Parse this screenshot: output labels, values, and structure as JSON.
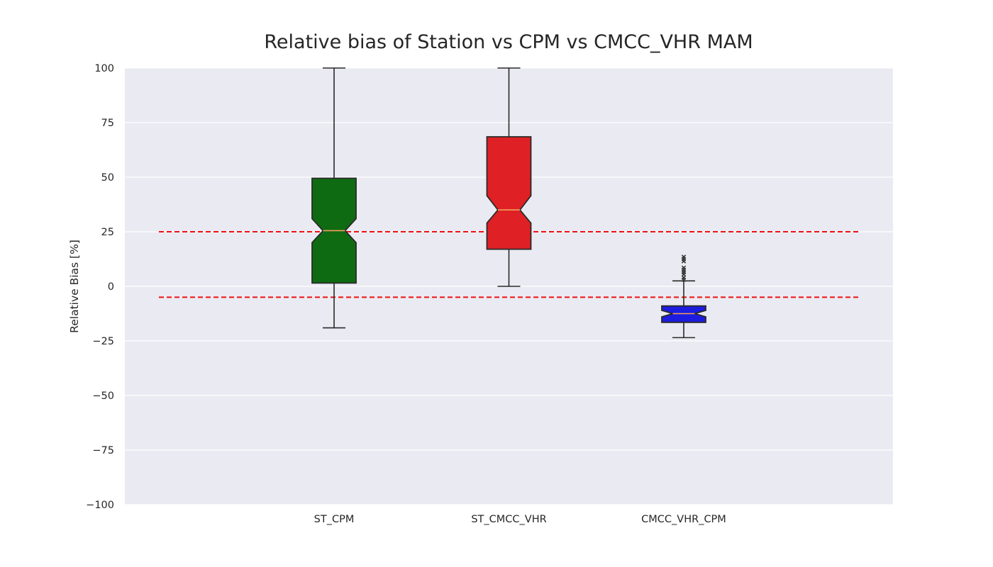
{
  "chart_data": {
    "type": "box",
    "title": "Relative bias of Station vs CPM vs CMCC_VHR MAM",
    "xlabel": "",
    "ylabel": "Relative Bias [%]",
    "ylim": [
      -100,
      100
    ],
    "yticks": [
      -100,
      -75,
      -50,
      -25,
      0,
      25,
      50,
      75,
      100
    ],
    "ytick_labels": [
      "−100",
      "−75",
      "−50",
      "−25",
      "0",
      "25",
      "50",
      "75",
      "100"
    ],
    "grid": true,
    "notched": true,
    "background": "#eaeaf2",
    "reference_lines": [
      {
        "y": 25,
        "style": "dashed",
        "color": "#ee1111"
      },
      {
        "y": -5,
        "style": "dashed",
        "color": "#ee1111"
      }
    ],
    "categories": [
      "ST_CPM",
      "ST_CMCC_VHR",
      "CMCC_VHR_CPM"
    ],
    "boxes": [
      {
        "label": "ST_CPM",
        "color": "#0f6b12",
        "whisker_low": -19,
        "q1": 1.5,
        "median": 25.5,
        "q3": 49.5,
        "whisker_high": 100,
        "notch_low": 20,
        "notch_high": 31,
        "outliers": []
      },
      {
        "label": "ST_CMCC_VHR",
        "color": "#df2024",
        "whisker_low": 0,
        "q1": 17,
        "median": 35,
        "q3": 68.5,
        "whisker_high": 100,
        "notch_low": 29,
        "notch_high": 41.5,
        "outliers": []
      },
      {
        "label": "CMCC_VHR_CPM",
        "color": "#1c1ce0",
        "whisker_low": -23.5,
        "q1": -16.5,
        "median": -12.5,
        "q3": -9,
        "whisker_high": 2.5,
        "notch_low": -14,
        "notch_high": -11,
        "outliers": [
          3,
          4,
          5.5,
          6.5,
          7.5,
          8.5,
          11.5,
          12.5,
          13.5
        ]
      }
    ],
    "median_color": "#f2a05a"
  }
}
